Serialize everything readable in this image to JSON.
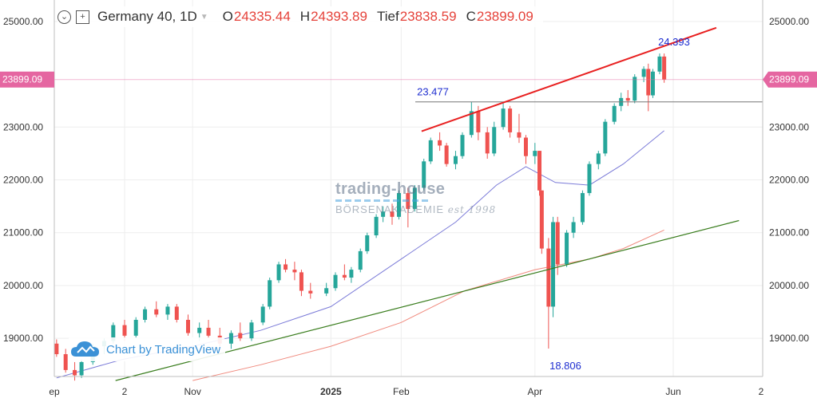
{
  "header": {
    "symbol": "Germany 40, 1D",
    "open_label": "O",
    "open_value": "24335.44",
    "high_label": "H",
    "high_value": "24393.89",
    "low_label": "Tief",
    "low_value": "23838.59",
    "close_label": "C",
    "close_value": "23899.09",
    "menu_icon": "chevron-down-circle-icon",
    "compare_icon": "plus-square-icon",
    "dropdown_icon": "caret-down-icon"
  },
  "watermark": {
    "line1": "trading-house",
    "line2": "BÖRSENAKADEMIE",
    "line2b": "est 1998"
  },
  "badge": {
    "text": "Chart by TradingView",
    "icon": "cloud-icon"
  },
  "colors": {
    "up": "#26a69a",
    "down": "#ef5350",
    "resistance": "#e82020",
    "support": "#3a7d1e",
    "ma_blue": "#7b7bd8",
    "ma_red": "#f08b7f",
    "price_tag": "#e566a1",
    "annotation": "#1f2fd0"
  },
  "chart_data": {
    "type": "candlestick",
    "symbol": "Germany 40",
    "timeframe": "1D",
    "ylim": [
      18200,
      25300
    ],
    "y_ticks": [
      "19000.00",
      "20000.00",
      "21000.00",
      "22000.00",
      "23000.00",
      "25000.00"
    ],
    "x_ticks": [
      "ep",
      "2",
      "Nov",
      "2025",
      "Feb",
      "Apr",
      "Jun",
      "2"
    ],
    "last_price": "23899.09",
    "annotations": [
      {
        "text": "24.393",
        "value": 24393
      },
      {
        "text": "23.477",
        "value": 23477
      },
      {
        "text": "18.806",
        "value": 18806
      }
    ],
    "horizontal_lines": [
      {
        "name": "support-level",
        "value": 23477
      },
      {
        "name": "last-price-line",
        "value": 23899
      }
    ],
    "trendlines": [
      {
        "name": "upper-resistance",
        "from": {
          "date": "2025-02-10",
          "value": 22920
        },
        "to": {
          "date": "2025-06-20",
          "value": 24880
        }
      },
      {
        "name": "lower-support",
        "from": {
          "date": "2024-09-28",
          "value": 18200
        },
        "to": {
          "date": "2025-06-30",
          "value": 21230
        }
      }
    ],
    "series": [
      {
        "name": "MA-blue",
        "dates": [
          "2024-09-02",
          "2024-10-01",
          "2024-11-01",
          "2024-12-01",
          "2025-01-01",
          "2025-02-01",
          "2025-02-25",
          "2025-03-15",
          "2025-03-28",
          "2025-04-10",
          "2025-04-25",
          "2025-05-10",
          "2025-05-28"
        ],
        "values": [
          18250,
          18600,
          18850,
          19150,
          19600,
          20500,
          21200,
          21900,
          22250,
          21950,
          21900,
          22300,
          22930
        ]
      },
      {
        "name": "MA-red",
        "dates": [
          "2024-11-01",
          "2024-12-01",
          "2025-01-01",
          "2025-02-01",
          "2025-03-01",
          "2025-04-01",
          "2025-04-25",
          "2025-05-10",
          "2025-05-28"
        ],
        "values": [
          18200,
          18500,
          18850,
          19300,
          19900,
          20300,
          20500,
          20700,
          21050
        ]
      }
    ],
    "candles": [
      {
        "d": "2024-09-02",
        "o": 18900,
        "h": 18980,
        "l": 18650,
        "c": 18700
      },
      {
        "d": "2024-09-06",
        "o": 18700,
        "h": 18800,
        "l": 18350,
        "c": 18400
      },
      {
        "d": "2024-09-10",
        "o": 18400,
        "h": 18550,
        "l": 18200,
        "c": 18300
      },
      {
        "d": "2024-09-13",
        "o": 18300,
        "h": 18600,
        "l": 18250,
        "c": 18550
      },
      {
        "d": "2024-09-18",
        "o": 18550,
        "h": 18900,
        "l": 18500,
        "c": 18850
      },
      {
        "d": "2024-09-23",
        "o": 18850,
        "h": 19000,
        "l": 18700,
        "c": 18950
      },
      {
        "d": "2024-09-27",
        "o": 18950,
        "h": 19300,
        "l": 18900,
        "c": 19250
      },
      {
        "d": "2024-10-02",
        "o": 19250,
        "h": 19350,
        "l": 18950,
        "c": 19050
      },
      {
        "d": "2024-10-07",
        "o": 19050,
        "h": 19400,
        "l": 19000,
        "c": 19350
      },
      {
        "d": "2024-10-11",
        "o": 19350,
        "h": 19600,
        "l": 19300,
        "c": 19550
      },
      {
        "d": "2024-10-16",
        "o": 19550,
        "h": 19700,
        "l": 19400,
        "c": 19450
      },
      {
        "d": "2024-10-21",
        "o": 19450,
        "h": 19650,
        "l": 19350,
        "c": 19600
      },
      {
        "d": "2024-10-25",
        "o": 19600,
        "h": 19650,
        "l": 19300,
        "c": 19350
      },
      {
        "d": "2024-10-30",
        "o": 19350,
        "h": 19450,
        "l": 19050,
        "c": 19100
      },
      {
        "d": "2024-11-04",
        "o": 19100,
        "h": 19300,
        "l": 18950,
        "c": 19200
      },
      {
        "d": "2024-11-08",
        "o": 19200,
        "h": 19350,
        "l": 19000,
        "c": 19050
      },
      {
        "d": "2024-11-13",
        "o": 19050,
        "h": 19200,
        "l": 18850,
        "c": 18900
      },
      {
        "d": "2024-11-18",
        "o": 18900,
        "h": 19150,
        "l": 18800,
        "c": 19100
      },
      {
        "d": "2024-11-22",
        "o": 19100,
        "h": 19300,
        "l": 18950,
        "c": 19000
      },
      {
        "d": "2024-11-27",
        "o": 19000,
        "h": 19350,
        "l": 18950,
        "c": 19300
      },
      {
        "d": "2024-12-02",
        "o": 19300,
        "h": 19650,
        "l": 19250,
        "c": 19600
      },
      {
        "d": "2024-12-05",
        "o": 19600,
        "h": 20150,
        "l": 19550,
        "c": 20100
      },
      {
        "d": "2024-12-09",
        "o": 20100,
        "h": 20450,
        "l": 20050,
        "c": 20400
      },
      {
        "d": "2024-12-12",
        "o": 20400,
        "h": 20500,
        "l": 20250,
        "c": 20300
      },
      {
        "d": "2024-12-16",
        "o": 20300,
        "h": 20450,
        "l": 20100,
        "c": 20250
      },
      {
        "d": "2024-12-19",
        "o": 20250,
        "h": 20300,
        "l": 19800,
        "c": 19900
      },
      {
        "d": "2024-12-23",
        "o": 19900,
        "h": 20050,
        "l": 19750,
        "c": 19850
      },
      {
        "d": "2024-12-30",
        "o": 19850,
        "h": 20050,
        "l": 19800,
        "c": 19950
      },
      {
        "d": "2025-01-03",
        "o": 19950,
        "h": 20250,
        "l": 19900,
        "c": 20200
      },
      {
        "d": "2025-01-07",
        "o": 20200,
        "h": 20400,
        "l": 20100,
        "c": 20150
      },
      {
        "d": "2025-01-10",
        "o": 20150,
        "h": 20350,
        "l": 20050,
        "c": 20300
      },
      {
        "d": "2025-01-14",
        "o": 20300,
        "h": 20700,
        "l": 20250,
        "c": 20650
      },
      {
        "d": "2025-01-17",
        "o": 20650,
        "h": 21000,
        "l": 20600,
        "c": 20950
      },
      {
        "d": "2025-01-21",
        "o": 20950,
        "h": 21350,
        "l": 20900,
        "c": 21300
      },
      {
        "d": "2025-01-24",
        "o": 21300,
        "h": 21500,
        "l": 21200,
        "c": 21400
      },
      {
        "d": "2025-01-28",
        "o": 21400,
        "h": 21550,
        "l": 21150,
        "c": 21300
      },
      {
        "d": "2025-01-31",
        "o": 21300,
        "h": 21800,
        "l": 21250,
        "c": 21750
      },
      {
        "d": "2025-02-04",
        "o": 21750,
        "h": 21850,
        "l": 21100,
        "c": 21450
      },
      {
        "d": "2025-02-07",
        "o": 21450,
        "h": 21900,
        "l": 21400,
        "c": 21850
      },
      {
        "d": "2025-02-11",
        "o": 21850,
        "h": 22400,
        "l": 21800,
        "c": 22350
      },
      {
        "d": "2025-02-14",
        "o": 22350,
        "h": 22800,
        "l": 22300,
        "c": 22750
      },
      {
        "d": "2025-02-18",
        "o": 22750,
        "h": 22900,
        "l": 22550,
        "c": 22650
      },
      {
        "d": "2025-02-21",
        "o": 22650,
        "h": 22700,
        "l": 22250,
        "c": 22300
      },
      {
        "d": "2025-02-25",
        "o": 22300,
        "h": 22550,
        "l": 22200,
        "c": 22450
      },
      {
        "d": "2025-02-28",
        "o": 22450,
        "h": 22900,
        "l": 22400,
        "c": 22850
      },
      {
        "d": "2025-03-04",
        "o": 22850,
        "h": 23477,
        "l": 22800,
        "c": 23300
      },
      {
        "d": "2025-03-07",
        "o": 23300,
        "h": 23400,
        "l": 22750,
        "c": 22900
      },
      {
        "d": "2025-03-11",
        "o": 22900,
        "h": 23000,
        "l": 22400,
        "c": 22500
      },
      {
        "d": "2025-03-14",
        "o": 22500,
        "h": 23100,
        "l": 22450,
        "c": 23000
      },
      {
        "d": "2025-03-18",
        "o": 23000,
        "h": 23450,
        "l": 22950,
        "c": 23350
      },
      {
        "d": "2025-03-21",
        "o": 23350,
        "h": 23400,
        "l": 22800,
        "c": 22900
      },
      {
        "d": "2025-03-25",
        "o": 22900,
        "h": 23250,
        "l": 22700,
        "c": 22800
      },
      {
        "d": "2025-03-28",
        "o": 22800,
        "h": 22850,
        "l": 22300,
        "c": 22450
      },
      {
        "d": "2025-04-01",
        "o": 22450,
        "h": 22700,
        "l": 22300,
        "c": 22550
      },
      {
        "d": "2025-04-03",
        "o": 22550,
        "h": 22550,
        "l": 21700,
        "c": 21800
      },
      {
        "d": "2025-04-04",
        "o": 21800,
        "h": 21800,
        "l": 20600,
        "c": 20700
      },
      {
        "d": "2025-04-07",
        "o": 20700,
        "h": 20900,
        "l": 18806,
        "c": 19600
      },
      {
        "d": "2025-04-09",
        "o": 19600,
        "h": 21300,
        "l": 19400,
        "c": 21200
      },
      {
        "d": "2025-04-11",
        "o": 21200,
        "h": 21300,
        "l": 20200,
        "c": 20400
      },
      {
        "d": "2025-04-15",
        "o": 20400,
        "h": 21050,
        "l": 20350,
        "c": 21000
      },
      {
        "d": "2025-04-18",
        "o": 21000,
        "h": 21300,
        "l": 20900,
        "c": 21200
      },
      {
        "d": "2025-04-22",
        "o": 21200,
        "h": 21800,
        "l": 21150,
        "c": 21750
      },
      {
        "d": "2025-04-25",
        "o": 21750,
        "h": 22350,
        "l": 21700,
        "c": 22300
      },
      {
        "d": "2025-04-29",
        "o": 22300,
        "h": 22550,
        "l": 22200,
        "c": 22500
      },
      {
        "d": "2025-05-02",
        "o": 22500,
        "h": 23150,
        "l": 22450,
        "c": 23100
      },
      {
        "d": "2025-05-06",
        "o": 23100,
        "h": 23450,
        "l": 23050,
        "c": 23400
      },
      {
        "d": "2025-05-09",
        "o": 23400,
        "h": 23650,
        "l": 23300,
        "c": 23550
      },
      {
        "d": "2025-05-12",
        "o": 23550,
        "h": 23700,
        "l": 23400,
        "c": 23500
      },
      {
        "d": "2025-05-15",
        "o": 23500,
        "h": 24000,
        "l": 23450,
        "c": 23950
      },
      {
        "d": "2025-05-19",
        "o": 23950,
        "h": 24150,
        "l": 23850,
        "c": 24100
      },
      {
        "d": "2025-05-21",
        "o": 24100,
        "h": 24200,
        "l": 23300,
        "c": 23600
      },
      {
        "d": "2025-05-23",
        "o": 23600,
        "h": 24100,
        "l": 23550,
        "c": 24050
      },
      {
        "d": "2025-05-26",
        "o": 24050,
        "h": 24393,
        "l": 24000,
        "c": 24335
      },
      {
        "d": "2025-05-28",
        "o": 24335,
        "h": 24393,
        "l": 23838,
        "c": 23899
      }
    ]
  }
}
